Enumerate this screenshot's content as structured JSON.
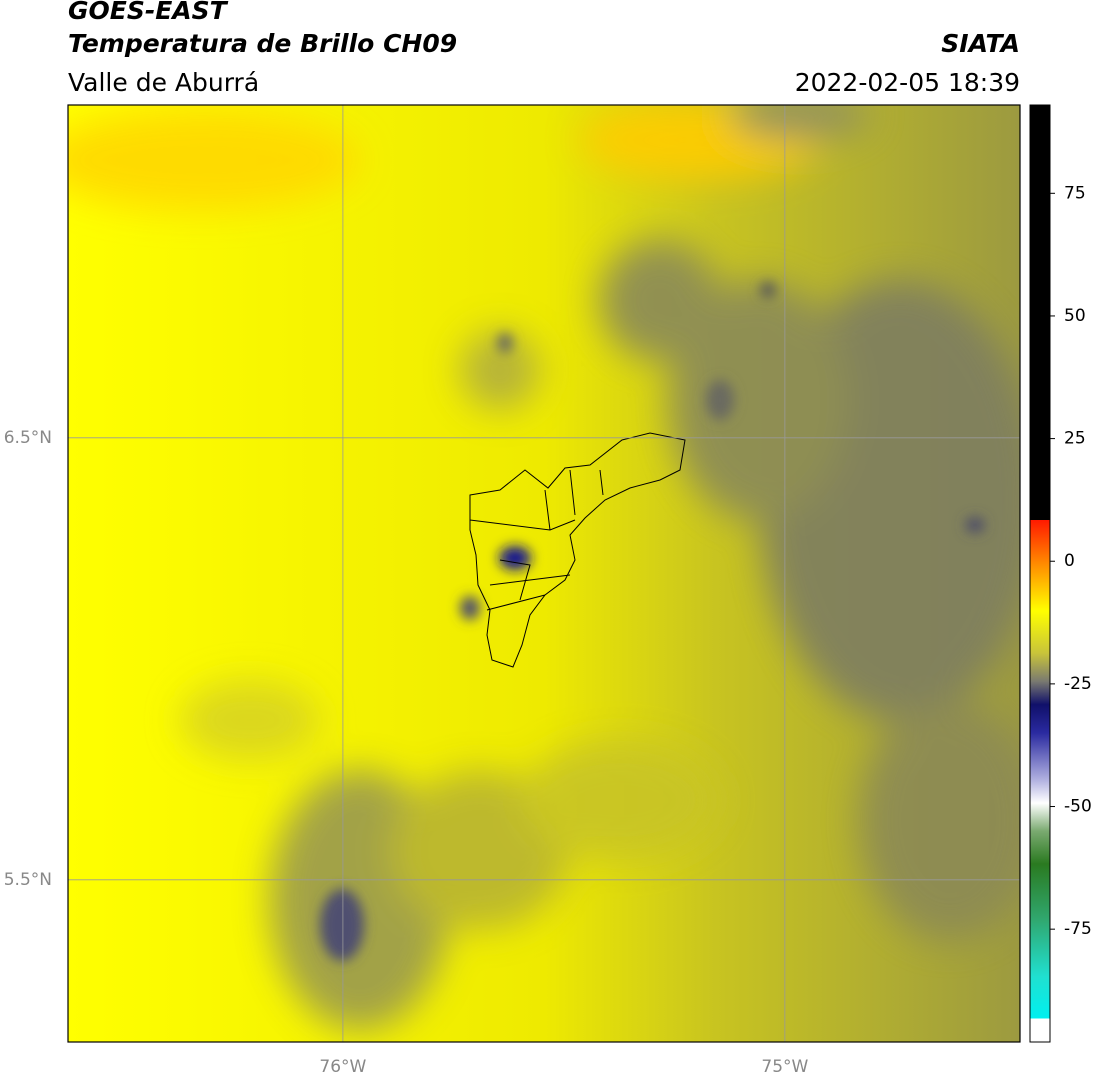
{
  "header": {
    "title": "GOES-EAST",
    "subtitle": "Temperatura de Brillo CH09",
    "region": "Valle de Aburrá",
    "source": "SIATA",
    "datetime": "2022-02-05 18:39"
  },
  "map": {
    "xlim": [
      -76.622,
      -74.468
    ],
    "ylim": [
      5.133,
      7.253
    ],
    "xticks": [
      {
        "value": -76,
        "label": "76°W"
      },
      {
        "value": -75,
        "label": "75°W"
      }
    ],
    "yticks": [
      {
        "value": 6.5,
        "label": "6.5°N"
      },
      {
        "value": 5.5,
        "label": "5.5°N"
      }
    ],
    "grid": true
  },
  "colorbar": {
    "lim": [
      -98,
      93
    ],
    "ticks": [
      75,
      50,
      25,
      0,
      -25,
      -50,
      -75
    ]
  }
}
